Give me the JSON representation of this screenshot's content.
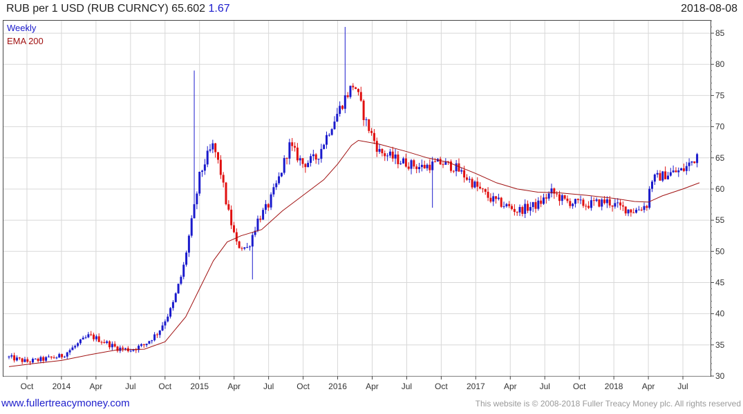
{
  "header": {
    "title": "RUB per 1 USD (RUB CURNCY) 65.602",
    "change": "1.67",
    "date": "2018-08-08"
  },
  "footer": {
    "site": "www.fullertreacymoney.com",
    "copyright": "This website is © 2008-2018 Fuller Treacy Money plc. All rights reserved"
  },
  "colors": {
    "up": "#1a1acc",
    "down": "#e01010",
    "ema": "#a01010",
    "grid": "#d8d8d8"
  },
  "chart_data": {
    "type": "candlestick",
    "interval": "Weekly",
    "overlay": "EMA 200",
    "ylim": [
      30,
      87
    ],
    "yticks": [
      30,
      35,
      40,
      45,
      50,
      55,
      60,
      65,
      70,
      75,
      80,
      85
    ],
    "xticks": [
      {
        "label": "Oct",
        "t": 2013.75
      },
      {
        "label": "2014",
        "t": 2014.0
      },
      {
        "label": "Apr",
        "t": 2014.25
      },
      {
        "label": "Jul",
        "t": 2014.5
      },
      {
        "label": "Oct",
        "t": 2014.75
      },
      {
        "label": "2015",
        "t": 2015.0
      },
      {
        "label": "Apr",
        "t": 2015.25
      },
      {
        "label": "Jul",
        "t": 2015.5
      },
      {
        "label": "Oct",
        "t": 2015.75
      },
      {
        "label": "2016",
        "t": 2016.0
      },
      {
        "label": "Apr",
        "t": 2016.25
      },
      {
        "label": "Jul",
        "t": 2016.5
      },
      {
        "label": "Oct",
        "t": 2016.75
      },
      {
        "label": "2017",
        "t": 2017.0
      },
      {
        "label": "Apr",
        "t": 2017.25
      },
      {
        "label": "Jul",
        "t": 2017.5
      },
      {
        "label": "Oct",
        "t": 2017.75
      },
      {
        "label": "2018",
        "t": 2018.0
      },
      {
        "label": "Apr",
        "t": 2018.25
      },
      {
        "label": "Jul",
        "t": 2018.5
      }
    ],
    "trend": [
      [
        2013.62,
        33.0
      ],
      [
        2013.75,
        32.3
      ],
      [
        2013.9,
        32.8
      ],
      [
        2014.0,
        33.2
      ],
      [
        2014.1,
        34.8
      ],
      [
        2014.2,
        36.5
      ],
      [
        2014.3,
        35.6
      ],
      [
        2014.4,
        34.5
      ],
      [
        2014.5,
        34.2
      ],
      [
        2014.6,
        35.0
      ],
      [
        2014.7,
        37.0
      ],
      [
        2014.8,
        41.0
      ],
      [
        2014.88,
        47.0
      ],
      [
        2014.92,
        52.0
      ],
      [
        2014.97,
        58.0
      ],
      [
        2015.0,
        62.0
      ],
      [
        2015.05,
        65.0
      ],
      [
        2015.1,
        67.0
      ],
      [
        2015.15,
        63.0
      ],
      [
        2015.2,
        57.0
      ],
      [
        2015.27,
        51.0
      ],
      [
        2015.35,
        50.5
      ],
      [
        2015.42,
        55.0
      ],
      [
        2015.5,
        57.5
      ],
      [
        2015.58,
        62.0
      ],
      [
        2015.65,
        67.0
      ],
      [
        2015.75,
        64.0
      ],
      [
        2015.85,
        65.0
      ],
      [
        2015.95,
        70.0
      ],
      [
        2016.05,
        74.5
      ],
      [
        2016.12,
        77.0
      ],
      [
        2016.2,
        71.0
      ],
      [
        2016.3,
        66.0
      ],
      [
        2016.45,
        64.5
      ],
      [
        2016.6,
        63.5
      ],
      [
        2016.75,
        64.2
      ],
      [
        2016.85,
        63.5
      ],
      [
        2016.95,
        61.5
      ],
      [
        2017.1,
        58.5
      ],
      [
        2017.3,
        56.5
      ],
      [
        2017.45,
        57.5
      ],
      [
        2017.55,
        59.5
      ],
      [
        2017.65,
        58.0
      ],
      [
        2017.8,
        57.5
      ],
      [
        2017.95,
        58.0
      ],
      [
        2018.05,
        57.0
      ],
      [
        2018.15,
        56.5
      ],
      [
        2018.24,
        57.5
      ],
      [
        2018.27,
        61.5
      ],
      [
        2018.4,
        62.5
      ],
      [
        2018.5,
        63.0
      ],
      [
        2018.62,
        65.6
      ]
    ],
    "ema_200": [
      [
        2013.62,
        31.5
      ],
      [
        2013.8,
        32.0
      ],
      [
        2014.0,
        32.5
      ],
      [
        2014.2,
        33.4
      ],
      [
        2014.4,
        34.2
      ],
      [
        2014.6,
        34.3
      ],
      [
        2014.75,
        35.5
      ],
      [
        2014.9,
        39.5
      ],
      [
        2015.0,
        44.0
      ],
      [
        2015.1,
        48.5
      ],
      [
        2015.2,
        51.5
      ],
      [
        2015.3,
        52.5
      ],
      [
        2015.45,
        53.5
      ],
      [
        2015.6,
        56.5
      ],
      [
        2015.75,
        59.0
      ],
      [
        2015.9,
        61.5
      ],
      [
        2016.0,
        64.0
      ],
      [
        2016.1,
        67.0
      ],
      [
        2016.15,
        67.8
      ],
      [
        2016.3,
        67.2
      ],
      [
        2016.5,
        66.0
      ],
      [
        2016.65,
        65.0
      ],
      [
        2016.8,
        64.3
      ],
      [
        2017.0,
        62.5
      ],
      [
        2017.15,
        61.0
      ],
      [
        2017.3,
        60.0
      ],
      [
        2017.45,
        59.5
      ],
      [
        2017.6,
        59.4
      ],
      [
        2017.8,
        59.0
      ],
      [
        2018.0,
        58.5
      ],
      [
        2018.15,
        58.0
      ],
      [
        2018.25,
        57.9
      ],
      [
        2018.35,
        58.9
      ],
      [
        2018.5,
        60.0
      ],
      [
        2018.62,
        61.0
      ]
    ],
    "last_close": 65.602
  }
}
